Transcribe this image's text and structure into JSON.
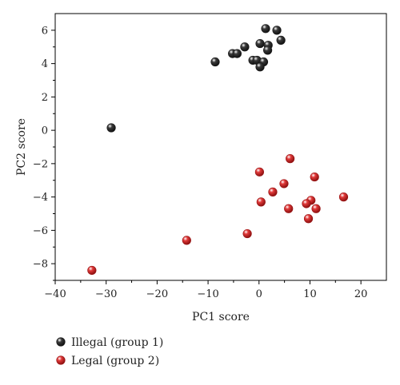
{
  "chart_data": {
    "type": "scatter",
    "xlabel": "PC1 score",
    "ylabel": "PC2 score",
    "xlim": [
      -40,
      25
    ],
    "ylim": [
      -9,
      7
    ],
    "xticks": [
      -40,
      -30,
      -20,
      -10,
      0,
      10,
      20
    ],
    "yticks": [
      -8,
      -6,
      -4,
      -2,
      0,
      2,
      4,
      6
    ],
    "tick_labels_x": [
      "−40",
      "−30",
      "−20",
      "−10",
      "0",
      "10",
      "20"
    ],
    "tick_labels_y": [
      "−8",
      "−6",
      "−4",
      "−2",
      "0",
      "2",
      "4",
      "6"
    ],
    "grid": false,
    "legend_position": "bottom-left, below plot",
    "series": [
      {
        "name": "Illegal (group 1)",
        "color": "#3a3a3a",
        "points": [
          [
            1.3,
            6.1
          ],
          [
            3.5,
            6.0
          ],
          [
            -2.8,
            5.0
          ],
          [
            0.2,
            5.2
          ],
          [
            1.8,
            5.1
          ],
          [
            4.3,
            5.4
          ],
          [
            1.7,
            4.8
          ],
          [
            -5.2,
            4.6
          ],
          [
            -4.3,
            4.6
          ],
          [
            -1.2,
            4.2
          ],
          [
            -0.4,
            4.2
          ],
          [
            0.9,
            4.1
          ],
          [
            0.2,
            3.8
          ],
          [
            -8.6,
            4.1
          ],
          [
            -29.0,
            0.15
          ]
        ]
      },
      {
        "name": "Legal (group 2)",
        "color": "#e23a3a",
        "points": [
          [
            6.1,
            -1.7
          ],
          [
            0.1,
            -2.5
          ],
          [
            10.9,
            -2.8
          ],
          [
            4.9,
            -3.2
          ],
          [
            2.7,
            -3.7
          ],
          [
            16.6,
            -4.0
          ],
          [
            10.2,
            -4.2
          ],
          [
            9.3,
            -4.4
          ],
          [
            0.4,
            -4.3
          ],
          [
            5.8,
            -4.7
          ],
          [
            11.2,
            -4.7
          ],
          [
            9.7,
            -5.3
          ],
          [
            -14.2,
            -6.6
          ],
          [
            -2.3,
            -6.2
          ],
          [
            -32.8,
            -8.4
          ]
        ]
      }
    ]
  }
}
